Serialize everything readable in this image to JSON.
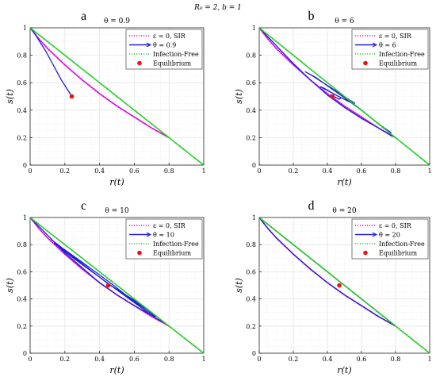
{
  "figure": {
    "suptitle": "R₀ = 2, b = 1"
  },
  "colors": {
    "sir": "#dd00dd",
    "theta": "#1f1fd6",
    "infection_free": "#22cc22",
    "equilibrium": "#ee1111",
    "grid": "#e4e4e4"
  },
  "chart_data": [
    {
      "type": "line",
      "panel_label": "a",
      "title": "θ = 0.9",
      "xlabel": "r(t)",
      "ylabel": "s(t)",
      "xlim": [
        0,
        1
      ],
      "ylim": [
        0,
        1
      ],
      "xticks": [
        "0",
        "0.2",
        "0.4",
        "0.6",
        "0.8",
        "1"
      ],
      "yticks": [
        "0",
        "0.2",
        "0.4",
        "0.6",
        "0.8",
        "1"
      ],
      "grid": true,
      "legend_position": "top-right",
      "legend": [
        "ε = 0, SIR",
        "θ = 0.9",
        "Infection-Free",
        "Equilibrium"
      ],
      "series": [
        {
          "name": "ε = 0, SIR",
          "style": "dotted",
          "points": [
            [
              0,
              1
            ],
            [
              0.05,
              0.92
            ],
            [
              0.1,
              0.85
            ],
            [
              0.2,
              0.73
            ],
            [
              0.3,
              0.62
            ],
            [
              0.4,
              0.52
            ],
            [
              0.5,
              0.43
            ],
            [
              0.6,
              0.35
            ],
            [
              0.7,
              0.27
            ],
            [
              0.8,
              0.2
            ]
          ]
        },
        {
          "name": "θ = 0.9",
          "style": "solid",
          "points": [
            [
              0,
              1
            ],
            [
              0.03,
              0.95
            ],
            [
              0.06,
              0.89
            ],
            [
              0.09,
              0.83
            ],
            [
              0.12,
              0.76
            ],
            [
              0.15,
              0.69
            ],
            [
              0.18,
              0.62
            ],
            [
              0.21,
              0.56
            ],
            [
              0.23,
              0.52
            ],
            [
              0.24,
              0.5
            ]
          ]
        },
        {
          "name": "Infection-Free",
          "style": "dotted",
          "points": [
            [
              0,
              1
            ],
            [
              1,
              0
            ]
          ]
        }
      ],
      "equilibrium": [
        0.24,
        0.5
      ]
    },
    {
      "type": "line",
      "panel_label": "b",
      "title": "θ = 6",
      "xlabel": "r(t)",
      "ylabel": "s(t)",
      "xlim": [
        0,
        1
      ],
      "ylim": [
        0,
        1
      ],
      "xticks": [
        "0",
        "0.2",
        "0.4",
        "0.6",
        "0.8",
        "1"
      ],
      "yticks": [
        "0",
        "0.2",
        "0.4",
        "0.6",
        "0.8",
        "1"
      ],
      "grid": true,
      "legend_position": "top-right",
      "legend": [
        "ε = 0, SIR",
        "θ = 6",
        "Infection-Free",
        "Equilibrium"
      ],
      "series": [
        {
          "name": "ε = 0, SIR",
          "style": "dotted",
          "points": [
            [
              0,
              1
            ],
            [
              0.05,
              0.92
            ],
            [
              0.1,
              0.85
            ],
            [
              0.2,
              0.73
            ],
            [
              0.3,
              0.62
            ],
            [
              0.4,
              0.52
            ],
            [
              0.5,
              0.43
            ],
            [
              0.6,
              0.35
            ],
            [
              0.7,
              0.27
            ],
            [
              0.8,
              0.2
            ]
          ]
        },
        {
          "name": "θ = 6",
          "style": "solid",
          "points": [
            [
              0,
              1
            ],
            [
              0.1,
              0.87
            ],
            [
              0.2,
              0.74
            ],
            [
              0.3,
              0.62
            ],
            [
              0.4,
              0.51
            ],
            [
              0.5,
              0.42
            ],
            [
              0.6,
              0.34
            ],
            [
              0.7,
              0.27
            ],
            [
              0.78,
              0.21
            ],
            [
              0.77,
              0.24
            ],
            [
              0.7,
              0.3
            ],
            [
              0.6,
              0.4
            ],
            [
              0.5,
              0.49
            ],
            [
              0.42,
              0.56
            ],
            [
              0.33,
              0.64
            ],
            [
              0.27,
              0.68
            ],
            [
              0.3,
              0.66
            ],
            [
              0.4,
              0.58
            ],
            [
              0.5,
              0.5
            ],
            [
              0.56,
              0.45
            ],
            [
              0.53,
              0.46
            ],
            [
              0.45,
              0.51
            ],
            [
              0.38,
              0.56
            ],
            [
              0.36,
              0.57
            ],
            [
              0.42,
              0.53
            ],
            [
              0.48,
              0.49
            ],
            [
              0.47,
              0.48
            ],
            [
              0.42,
              0.51
            ],
            [
              0.43,
              0.5
            ]
          ]
        },
        {
          "name": "Infection-Free",
          "style": "dotted",
          "points": [
            [
              0,
              1
            ],
            [
              1,
              0
            ]
          ]
        }
      ],
      "equilibrium": [
        0.43,
        0.5
      ]
    },
    {
      "type": "line",
      "panel_label": "c",
      "title": "θ = 10",
      "xlabel": "r(t)",
      "ylabel": "s(t)",
      "xlim": [
        0,
        1
      ],
      "ylim": [
        0,
        1
      ],
      "xticks": [
        "0",
        "0.2",
        "0.4",
        "0.6",
        "0.8",
        "1"
      ],
      "yticks": [
        "0",
        "0.2",
        "0.4",
        "0.6",
        "0.8",
        "1"
      ],
      "grid": true,
      "legend_position": "top-right",
      "legend": [
        "ε = 0, SIR",
        "θ = 10",
        "Infection-Free",
        "Equilibrium"
      ],
      "series": [
        {
          "name": "ε = 0, SIR",
          "style": "dotted",
          "points": [
            [
              0,
              1
            ],
            [
              0.05,
              0.92
            ],
            [
              0.1,
              0.85
            ],
            [
              0.2,
              0.73
            ],
            [
              0.3,
              0.62
            ],
            [
              0.4,
              0.52
            ],
            [
              0.5,
              0.43
            ],
            [
              0.6,
              0.35
            ],
            [
              0.7,
              0.27
            ],
            [
              0.8,
              0.2
            ]
          ]
        },
        {
          "name": "θ = 10",
          "style": "solid",
          "points": [
            [
              0,
              1
            ],
            [
              0.1,
              0.87
            ],
            [
              0.2,
              0.74
            ],
            [
              0.3,
              0.63
            ],
            [
              0.4,
              0.52
            ],
            [
              0.5,
              0.43
            ],
            [
              0.6,
              0.35
            ],
            [
              0.7,
              0.28
            ],
            [
              0.76,
              0.23
            ],
            [
              0.74,
              0.26
            ],
            [
              0.6,
              0.38
            ],
            [
              0.45,
              0.53
            ],
            [
              0.3,
              0.67
            ],
            [
              0.18,
              0.78
            ],
            [
              0.12,
              0.84
            ],
            [
              0.16,
              0.8
            ],
            [
              0.3,
              0.66
            ],
            [
              0.45,
              0.51
            ],
            [
              0.6,
              0.39
            ],
            [
              0.72,
              0.27
            ],
            [
              0.7,
              0.28
            ],
            [
              0.55,
              0.42
            ],
            [
              0.4,
              0.56
            ],
            [
              0.25,
              0.7
            ],
            [
              0.14,
              0.81
            ]
          ]
        },
        {
          "name": "Infection-Free",
          "style": "dotted",
          "points": [
            [
              0,
              1
            ],
            [
              1,
              0
            ]
          ]
        }
      ],
      "equilibrium": [
        0.45,
        0.5
      ]
    },
    {
      "type": "line",
      "panel_label": "d",
      "title": "θ = 20",
      "xlabel": "r(t)",
      "ylabel": "s(t)",
      "xlim": [
        0,
        1
      ],
      "ylim": [
        0,
        1
      ],
      "xticks": [
        "0",
        "0.2",
        "0.4",
        "0.6",
        "0.8",
        "1"
      ],
      "yticks": [
        "0",
        "0.2",
        "0.4",
        "0.6",
        "0.8",
        "1"
      ],
      "grid": true,
      "legend_position": "top-right",
      "legend": [
        "ε = 0, SIR",
        "θ = 20",
        "Infection-Free",
        "Equilibrium"
      ],
      "series": [
        {
          "name": "ε = 0, SIR",
          "style": "dotted",
          "points": [
            [
              0,
              1
            ],
            [
              0.05,
              0.92
            ],
            [
              0.1,
              0.85
            ],
            [
              0.2,
              0.73
            ],
            [
              0.3,
              0.62
            ],
            [
              0.4,
              0.52
            ],
            [
              0.5,
              0.43
            ],
            [
              0.6,
              0.35
            ],
            [
              0.7,
              0.27
            ],
            [
              0.8,
              0.2
            ]
          ]
        },
        {
          "name": "θ = 20",
          "style": "solid",
          "points": [
            [
              0,
              1
            ],
            [
              0.05,
              0.92
            ],
            [
              0.1,
              0.85
            ],
            [
              0.2,
              0.73
            ],
            [
              0.3,
              0.62
            ],
            [
              0.4,
              0.52
            ],
            [
              0.5,
              0.43
            ],
            [
              0.6,
              0.35
            ],
            [
              0.7,
              0.27
            ],
            [
              0.8,
              0.2
            ],
            [
              0.6,
              0.4
            ],
            [
              0.4,
              0.6
            ],
            [
              0.2,
              0.8
            ],
            [
              0,
              1
            ]
          ]
        },
        {
          "name": "Infection-Free",
          "style": "dotted",
          "points": [
            [
              0,
              1
            ],
            [
              1,
              0
            ]
          ]
        }
      ],
      "equilibrium": [
        0.47,
        0.5
      ]
    }
  ]
}
